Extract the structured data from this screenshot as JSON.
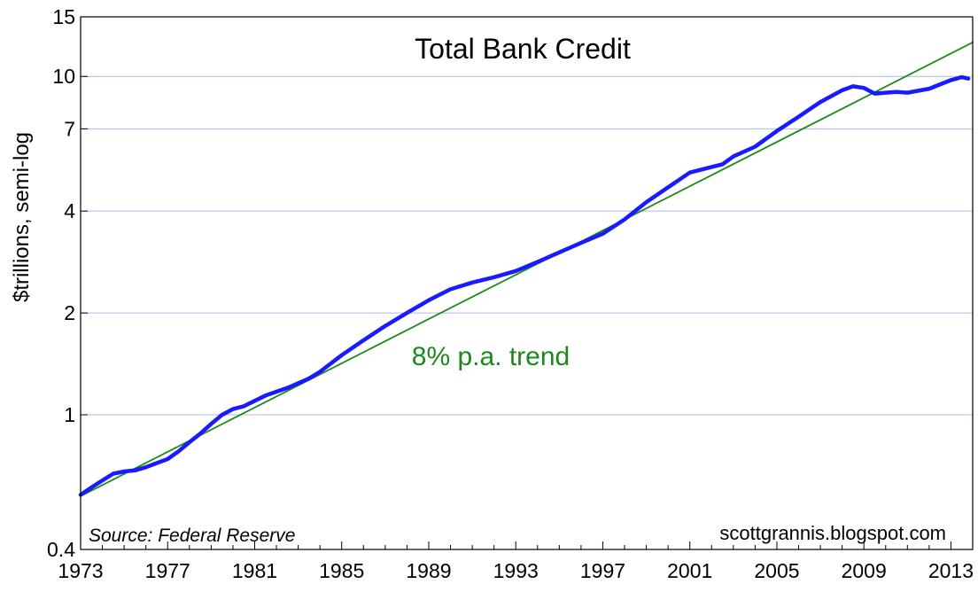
{
  "chart_data": {
    "type": "line",
    "title": "Total Bank Credit",
    "ylabel": "$trillions, semi-log",
    "xlabel": "",
    "y_scale": "log",
    "ylim": [
      0.4,
      15
    ],
    "xlim": [
      1973,
      2014
    ],
    "grid": "horizontal",
    "y_ticks": [
      0.4,
      1,
      2,
      4,
      7,
      10,
      15
    ],
    "y_tick_labels": [
      "0.4",
      "1",
      "2",
      "4",
      "7",
      "10",
      "15"
    ],
    "x_ticks": [
      1973,
      1977,
      1981,
      1985,
      1989,
      1993,
      1997,
      2001,
      2005,
      2009,
      2013
    ],
    "x_tick_labels": [
      "1973",
      "1977",
      "1981",
      "1985",
      "1989",
      "1993",
      "1997",
      "2001",
      "2005",
      "2009",
      "2013"
    ],
    "series": [
      {
        "color": "#1a1aff",
        "x": [
          1973.0,
          1973.5,
          1974.0,
          1974.5,
          1975.0,
          1975.5,
          1976.0,
          1976.5,
          1977.0,
          1977.5,
          1978.0,
          1978.5,
          1979.0,
          1979.5,
          1980.0,
          1980.5,
          1981.0,
          1981.5,
          1982.0,
          1982.5,
          1983.0,
          1983.5,
          1984.0,
          1985.0,
          1986.0,
          1987.0,
          1988.0,
          1989.0,
          1990.0,
          1991.0,
          1992.0,
          1993.0,
          1994.0,
          1995.0,
          1996.0,
          1997.0,
          1998.0,
          1999.0,
          2000.0,
          2001.0,
          2002.0,
          2002.5,
          2003.0,
          2004.0,
          2005.0,
          2006.0,
          2007.0,
          2008.0,
          2008.5,
          2009.0,
          2009.5,
          2010.0,
          2010.5,
          2011.0,
          2012.0,
          2013.0,
          2013.5,
          2013.8
        ],
        "values": [
          0.58,
          0.61,
          0.64,
          0.67,
          0.68,
          0.685,
          0.7,
          0.72,
          0.74,
          0.78,
          0.83,
          0.88,
          0.94,
          1.0,
          1.04,
          1.06,
          1.1,
          1.14,
          1.17,
          1.2,
          1.24,
          1.28,
          1.34,
          1.5,
          1.66,
          1.83,
          2.0,
          2.18,
          2.35,
          2.46,
          2.55,
          2.66,
          2.83,
          3.02,
          3.22,
          3.43,
          3.78,
          4.25,
          4.7,
          5.2,
          5.4,
          5.5,
          5.8,
          6.2,
          6.9,
          7.6,
          8.4,
          9.1,
          9.35,
          9.25,
          8.9,
          8.95,
          9.0,
          8.95,
          9.2,
          9.75,
          9.95,
          9.85
        ]
      },
      {
        "name": "8% p.a. trend",
        "color": "#1b8a1b",
        "x": [
          1973.0,
          2014.0
        ],
        "values": [
          0.575,
          12.61
        ]
      }
    ],
    "annotations": {
      "trend_label": "8% p.a. trend",
      "source": "Source: Federal Reserve",
      "credit": "scottgrannis.blogspot.com"
    }
  }
}
